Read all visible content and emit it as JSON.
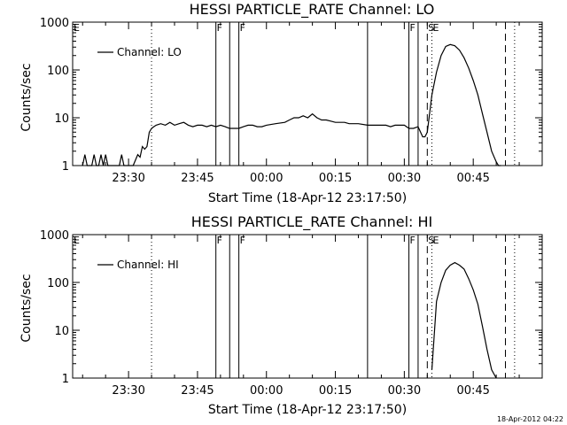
{
  "footer_timestamp": "18-Apr-2012 04:22",
  "chart_data": [
    {
      "type": "line",
      "title": "HESSI PARTICLE_RATE Channel: LO",
      "xlabel": "Start Time (18-Apr-12 23:17:50)",
      "ylabel": "Counts/sec",
      "y_scale": "log",
      "ylim": [
        1,
        1000
      ],
      "y_ticks": [
        "1",
        "10",
        "100",
        "1000"
      ],
      "x_axis_unit": "HH:MM",
      "xlim": [
        "23:17:50",
        "01:00"
      ],
      "x_ticks": [
        "23:30",
        "23:45",
        "00:00",
        "00:15",
        "00:30",
        "00:45"
      ],
      "grid": false,
      "legend_position": "top-left",
      "series": [
        {
          "name": "Channel: LO",
          "x": [
            "23:20",
            "23:20:30",
            "23:21",
            "23:21:30",
            "23:22",
            "23:22:30",
            "23:23",
            "23:23:30",
            "23:24",
            "23:24:30",
            "23:25",
            "23:25:30",
            "23:26",
            "23:27",
            "23:28",
            "23:28:30",
            "23:29",
            "23:30",
            "23:31",
            "23:32",
            "23:32:30",
            "23:33",
            "23:33:30",
            "23:34",
            "23:34:30",
            "23:35",
            "23:35:30",
            "23:36",
            "23:37",
            "23:38",
            "23:39",
            "23:40",
            "23:41",
            "23:42",
            "23:43",
            "23:44",
            "23:45",
            "23:46",
            "23:47",
            "23:48",
            "23:49",
            "23:50",
            "23:51",
            "23:52",
            "23:53",
            "23:54",
            "23:55",
            "23:56",
            "23:57",
            "23:58",
            "23:59",
            "00:00",
            "00:02",
            "00:04",
            "00:05",
            "00:06",
            "00:07",
            "00:08",
            "00:09",
            "00:10",
            "00:11",
            "00:12",
            "00:13",
            "00:14",
            "00:15",
            "00:16",
            "00:17",
            "00:18",
            "00:20",
            "00:22",
            "00:24",
            "00:26",
            "00:27",
            "00:28",
            "00:29",
            "00:30",
            "00:31",
            "00:32",
            "00:33",
            "00:34",
            "00:34:30",
            "00:35",
            "00:36",
            "00:37",
            "00:38",
            "00:39",
            "00:40",
            "00:41",
            "00:42",
            "00:43",
            "00:44",
            "00:45",
            "00:46",
            "00:47",
            "00:48",
            "00:49",
            "00:50",
            "00:50:30",
            "00:51"
          ],
          "y": [
            1,
            1.7,
            1,
            1,
            1,
            1.7,
            1,
            1,
            1.7,
            1,
            1.7,
            1,
            1,
            1,
            1,
            1.7,
            1,
            1,
            1,
            1.7,
            1.5,
            2.5,
            2.2,
            2.5,
            5,
            6,
            6.5,
            7,
            7.5,
            7,
            8,
            7,
            7.5,
            8,
            7,
            6.5,
            7,
            7,
            6.5,
            7,
            6.5,
            7,
            6.5,
            6,
            6,
            6,
            6.5,
            7,
            7,
            6.5,
            6.5,
            7,
            7.5,
            8,
            9,
            10,
            10,
            11,
            10,
            12,
            10,
            9,
            9,
            8.5,
            8,
            8,
            8,
            7.5,
            7.5,
            7,
            7,
            7,
            6.5,
            7,
            7,
            7,
            6,
            6,
            6.5,
            4,
            4,
            5,
            30,
            90,
            200,
            310,
            340,
            320,
            260,
            180,
            110,
            60,
            30,
            12,
            5,
            2,
            1.2,
            1,
            1
          ]
        }
      ],
      "markers": [
        {
          "label": "E",
          "x": "23:17:50",
          "style": "solid"
        },
        {
          "label": "",
          "x": "23:35",
          "style": "dotted"
        },
        {
          "label": "F",
          "x": "23:49",
          "style": "solid"
        },
        {
          "label": "",
          "x": "23:52",
          "style": "solid"
        },
        {
          "label": "F",
          "x": "23:54",
          "style": "solid"
        },
        {
          "label": "",
          "x": "00:22",
          "style": "solid"
        },
        {
          "label": "F",
          "x": "00:31",
          "style": "solid"
        },
        {
          "label": "",
          "x": "00:33",
          "style": "solid"
        },
        {
          "label": "S",
          "x": "00:35",
          "style": "dashed"
        },
        {
          "label": "E",
          "x": "00:36",
          "style": "dotted"
        },
        {
          "label": "",
          "x": "00:52",
          "style": "dashed"
        },
        {
          "label": "",
          "x": "00:54",
          "style": "dotted"
        }
      ]
    },
    {
      "type": "line",
      "title": "HESSI PARTICLE_RATE Channel: HI",
      "xlabel": "Start Time (18-Apr-12 23:17:50)",
      "ylabel": "Counts/sec",
      "y_scale": "log",
      "ylim": [
        1,
        1000
      ],
      "y_ticks": [
        "1",
        "10",
        "100",
        "1000"
      ],
      "x_axis_unit": "HH:MM",
      "xlim": [
        "23:17:50",
        "01:00"
      ],
      "x_ticks": [
        "23:30",
        "23:45",
        "00:00",
        "00:15",
        "00:30",
        "00:45"
      ],
      "grid": false,
      "legend_position": "top-left",
      "series": [
        {
          "name": "Channel: HI",
          "x": [
            "00:36",
            "00:37",
            "00:38",
            "00:39",
            "00:40",
            "00:41",
            "00:42",
            "00:43",
            "00:44",
            "00:45",
            "00:46",
            "00:47",
            "00:48",
            "00:49",
            "00:50"
          ],
          "y": [
            1.5,
            40,
            100,
            180,
            230,
            260,
            230,
            190,
            120,
            70,
            35,
            12,
            4,
            1.5,
            1
          ]
        }
      ],
      "markers": [
        {
          "label": "E",
          "x": "23:17:50",
          "style": "solid"
        },
        {
          "label": "",
          "x": "23:35",
          "style": "dotted"
        },
        {
          "label": "F",
          "x": "23:49",
          "style": "solid"
        },
        {
          "label": "",
          "x": "23:52",
          "style": "solid"
        },
        {
          "label": "F",
          "x": "23:54",
          "style": "solid"
        },
        {
          "label": "",
          "x": "00:22",
          "style": "solid"
        },
        {
          "label": "F",
          "x": "00:31",
          "style": "solid"
        },
        {
          "label": "",
          "x": "00:33",
          "style": "solid"
        },
        {
          "label": "S",
          "x": "00:35",
          "style": "dashed"
        },
        {
          "label": "E",
          "x": "00:36",
          "style": "dotted"
        },
        {
          "label": "",
          "x": "00:52",
          "style": "dashed"
        },
        {
          "label": "",
          "x": "00:54",
          "style": "dotted"
        }
      ]
    }
  ]
}
